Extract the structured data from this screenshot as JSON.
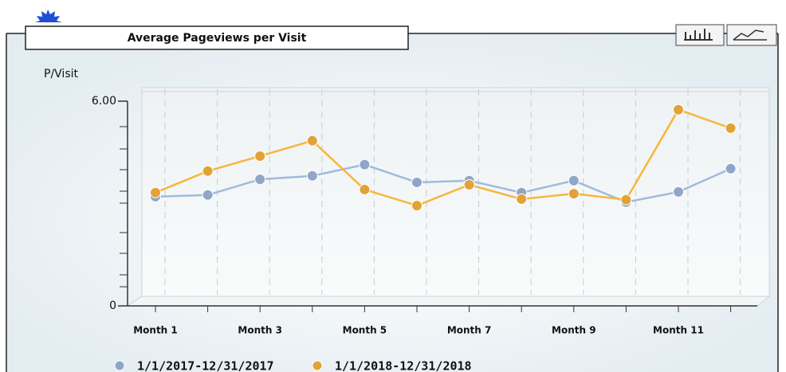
{
  "chart_data": {
    "type": "line",
    "title": "Average Pageviews per Visit",
    "y_label": "P/Visit",
    "categories": [
      "Month 1",
      null,
      "Month 3",
      null,
      "Month 5",
      null,
      "Month 7",
      null,
      "Month 9",
      null,
      "Month 11",
      null
    ],
    "series": [
      {
        "name": "1/1/2017-12/31/2017",
        "color": "#9dbbe0",
        "marker_color": "#8fa6c8",
        "values": [
          3.2,
          3.25,
          3.71,
          3.81,
          4.14,
          3.62,
          3.67,
          3.32,
          3.67,
          3.04,
          3.34,
          4.02
        ]
      },
      {
        "name": "1/1/2018-12/31/2018",
        "color": "#f6b73c",
        "marker_color": "#e2a238",
        "values": [
          3.32,
          3.95,
          4.39,
          4.84,
          3.41,
          2.94,
          3.55,
          3.13,
          3.29,
          3.11,
          5.75,
          5.21
        ]
      }
    ],
    "ylim": [
      0,
      6
    ],
    "yticks": [
      0,
      {
        "value": 6,
        "label": "6.00"
      }
    ],
    "grid": true
  }
}
